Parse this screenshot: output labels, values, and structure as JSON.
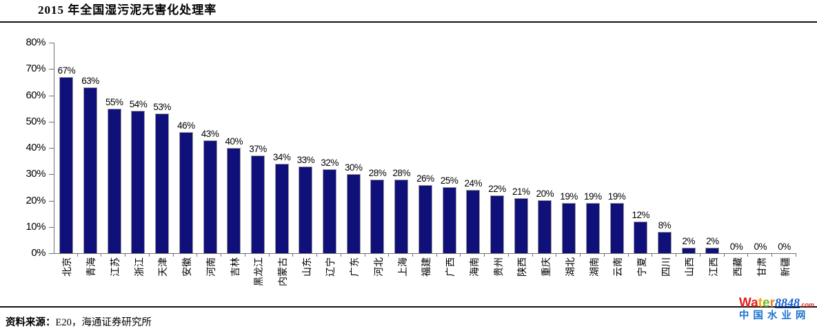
{
  "title": "2015 年全国湿污泥无害化处理率",
  "chart_data": {
    "type": "bar",
    "title": "2015 年全国湿污泥无害化处理率",
    "categories": [
      "北京",
      "青海",
      "江苏",
      "浙江",
      "天津",
      "安徽",
      "河南",
      "吉林",
      "黑龙江",
      "内蒙古",
      "山东",
      "辽宁",
      "广东",
      "河北",
      "上海",
      "福建",
      "广西",
      "海南",
      "贵州",
      "陕西",
      "重庆",
      "湖北",
      "湖南",
      "云南",
      "宁夏",
      "四川",
      "山西",
      "江西",
      "西藏",
      "甘肃",
      "新疆"
    ],
    "values": [
      67,
      63,
      55,
      54,
      53,
      46,
      43,
      40,
      37,
      34,
      33,
      32,
      30,
      28,
      28,
      26,
      25,
      24,
      22,
      21,
      20,
      19,
      19,
      19,
      12,
      8,
      2,
      2,
      0,
      0,
      0
    ],
    "value_labels": [
      "67%",
      "63%",
      "55%",
      "54%",
      "53%",
      "46%",
      "43%",
      "40%",
      "37%",
      "34%",
      "33%",
      "32%",
      "30%",
      "28%",
      "28%",
      "26%",
      "25%",
      "24%",
      "22%",
      "21%",
      "20%",
      "19%",
      "19%",
      "19%",
      "12%",
      "8%",
      "2%",
      "2%",
      "0%",
      "0%",
      "0%"
    ],
    "xlabel": "",
    "ylabel": "",
    "ylim": [
      0,
      80
    ],
    "y_ticks": [
      "0%",
      "10%",
      "20%",
      "30%",
      "40%",
      "50%",
      "60%",
      "70%",
      "80%"
    ],
    "grid": "off",
    "legend": "none",
    "bar_color": "#10107a",
    "bar_border_color": "#9a9a9a",
    "axis_color": "#6e6e6e"
  },
  "footer": {
    "source_prefix": "资料来源：",
    "source_text": "E20，海通证券研究所"
  },
  "logo": {
    "word": [
      {
        "ch": "W",
        "color": "#e2211c"
      },
      {
        "ch": "a",
        "color": "#e2211c"
      },
      {
        "ch": "t",
        "color": "#f5a70a"
      },
      {
        "ch": "e",
        "color": "#76b72a"
      },
      {
        "ch": "r",
        "color": "#f07c1c"
      }
    ],
    "number": "8848",
    "tld": ".com",
    "subtitle": "中国水业网"
  }
}
